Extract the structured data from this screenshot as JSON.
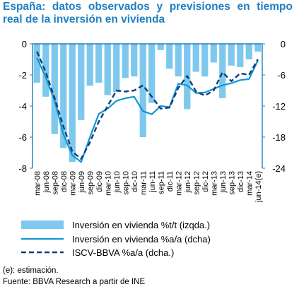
{
  "title": "España: datos observados y previsiones en tiempo real de la inversión en vivienda",
  "footnote": "(e): estimación.",
  "source": "Fuente: BBVA Research a partir de INE",
  "colors": {
    "bars": "#7ec8ee",
    "line": "#1296d3",
    "dashed": "#0e3d7a",
    "axis": "#1f7fc2",
    "title": "#1f7fc2"
  },
  "chart_data": {
    "type": "bar",
    "title": "España: datos observados y previsiones en tiempo real de la inversión en vivienda",
    "categories": [
      "mar-08",
      "jun-08",
      "sep-08",
      "dic-08",
      "mar-09",
      "jun-09",
      "sep-09",
      "dic-09",
      "mar-10",
      "jun-10",
      "sep-10",
      "dic-10",
      "mar-11",
      "jun-11",
      "sep-11",
      "dic-11",
      "mar-12",
      "jun-12",
      "sep-12",
      "dic-12",
      "mar-13",
      "jun-13",
      "sep-13",
      "dic-13",
      "mar-14",
      "jun-14(e)"
    ],
    "left_axis": {
      "ylim": [
        -8,
        0
      ],
      "ticks": [
        0,
        -2,
        -4,
        -6,
        -8
      ]
    },
    "right_axis": {
      "ylim": [
        -24,
        0
      ],
      "ticks": [
        0,
        -6,
        -12,
        -18,
        -24
      ]
    },
    "series": [
      {
        "name": "Inversión en vivienda %t/t (izqda.)",
        "type": "bar",
        "axis": "left",
        "values": [
          -2.5,
          -3.4,
          -5.8,
          -6.7,
          -7.6,
          -4.9,
          -2.7,
          -2.5,
          -3.3,
          -3.1,
          -2.2,
          -2.1,
          -6.0,
          -3.8,
          -0.4,
          -1.6,
          -2.1,
          -4.2,
          -1.8,
          -2.1,
          -1.2,
          -3.5,
          -1.4,
          -1.5,
          -1.0,
          -0.5
        ]
      },
      {
        "name": "Inversión en vivienda %a/a (dcha)",
        "type": "line",
        "axis": "right",
        "values": [
          -2.7,
          -6.5,
          -11.0,
          -17.5,
          -21.5,
          -22.8,
          -18.0,
          -13.5,
          -12.5,
          -11.0,
          -10.5,
          -10.2,
          -13.0,
          -13.6,
          -12.0,
          -12.2,
          -7.7,
          -8.0,
          -9.5,
          -9.4,
          -8.7,
          -8.0,
          -7.6,
          -7.0,
          -6.8,
          -3.2
        ]
      },
      {
        "name": "ISCV-BBVA %a/a (dcha.)",
        "type": "dashed-line",
        "axis": "right",
        "values": [
          -1.5,
          -5.5,
          -10.5,
          -16.0,
          -20.8,
          -22.2,
          -19.0,
          -15.0,
          -12.0,
          -9.0,
          -9.2,
          -9.0,
          -8.0,
          -10.2,
          -12.5,
          -12.3,
          -8.5,
          -6.2,
          -9.2,
          -10.0,
          -9.0,
          -5.5,
          -7.2,
          -5.7,
          -6.0,
          -3.0
        ]
      }
    ],
    "legend_position": "bottom",
    "grid": false
  }
}
